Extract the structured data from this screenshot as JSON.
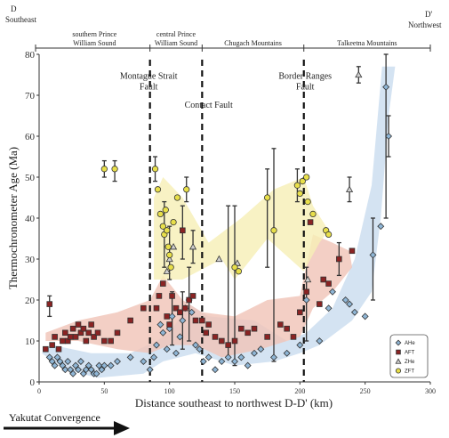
{
  "chart_data": {
    "type": "scatter",
    "xlabel": "Distance southeast to northwest D-D' (km)",
    "ylabel": "Thermochronometer Age (Ma)",
    "xlim": [
      0,
      300
    ],
    "ylim": [
      0,
      80
    ],
    "x_ticks": [
      0,
      50,
      100,
      150,
      200,
      250,
      300
    ],
    "y_ticks": [
      0,
      10,
      20,
      30,
      40,
      50,
      60,
      70,
      80
    ],
    "endpoints": {
      "left": {
        "line1": "D",
        "line2": "Southeast"
      },
      "right": {
        "line1": "D'",
        "line2": "Northwest"
      }
    },
    "regions": [
      {
        "line1": "southern Prince",
        "line2": "William Sound",
        "x_start": 0,
        "x_end": 85
      },
      {
        "line1": "central Prince",
        "line2": "William Sound",
        "x_start": 85,
        "x_end": 125
      },
      {
        "line1": "Chugach Mountains",
        "line2": "",
        "x_start": 125,
        "x_end": 203
      },
      {
        "line1": "Talkeetna Mountains",
        "line2": "",
        "x_start": 203,
        "x_end": 300
      }
    ],
    "faults": [
      {
        "name_line1": "Montague Strait",
        "name_line2": "Fault",
        "x": 85,
        "label_x": 84,
        "label_y": 74
      },
      {
        "name_line1": "Contact Fault",
        "name_line2": "",
        "x": 125,
        "label_x": 130,
        "label_y": 67
      },
      {
        "name_line1": "Border Ranges",
        "name_line2": "Fault",
        "x": 203,
        "label_x": 204,
        "label_y": 74
      }
    ],
    "legend": {
      "position": "bottom-right",
      "entries": [
        "AHe",
        "AFT",
        "ZHe",
        "ZFT"
      ]
    },
    "series_colors": {
      "AHe": "#8fb6d6",
      "AFT": "#8b2323",
      "ZHe": "#cfcfcf",
      "ZFT": "#e8df4a"
    },
    "envelopes": [
      {
        "series": "AHe",
        "color": "#c9dcef",
        "polygon": [
          [
            2,
            7
          ],
          [
            20,
            3
          ],
          [
            45,
            1
          ],
          [
            80,
            2
          ],
          [
            95,
            5
          ],
          [
            120,
            7
          ],
          [
            150,
            4
          ],
          [
            180,
            5
          ],
          [
            200,
            7
          ],
          [
            215,
            9
          ],
          [
            240,
            15
          ],
          [
            255,
            22
          ],
          [
            262,
            40
          ],
          [
            268,
            65
          ],
          [
            273,
            77
          ],
          [
            263,
            77
          ],
          [
            255,
            48
          ],
          [
            242,
            30
          ],
          [
            225,
            18
          ],
          [
            205,
            12
          ],
          [
            190,
            10
          ],
          [
            165,
            15
          ],
          [
            130,
            16
          ],
          [
            115,
            19
          ],
          [
            100,
            12
          ],
          [
            90,
            10
          ],
          [
            70,
            7
          ],
          [
            40,
            7
          ],
          [
            10,
            9
          ]
        ]
      },
      {
        "series": "AFT",
        "color": "#f0c3b6",
        "polygon": [
          [
            5,
            10
          ],
          [
            30,
            10
          ],
          [
            60,
            8
          ],
          [
            85,
            7
          ],
          [
            100,
            9
          ],
          [
            120,
            9
          ],
          [
            140,
            6
          ],
          [
            170,
            8
          ],
          [
            200,
            11
          ],
          [
            210,
            18
          ],
          [
            225,
            22
          ],
          [
            240,
            28
          ],
          [
            238,
            32
          ],
          [
            225,
            34
          ],
          [
            210,
            36
          ],
          [
            200,
            21
          ],
          [
            175,
            20
          ],
          [
            150,
            16
          ],
          [
            125,
            17
          ],
          [
            110,
            20
          ],
          [
            95,
            26
          ],
          [
            85,
            20
          ],
          [
            60,
            17
          ],
          [
            30,
            15
          ],
          [
            5,
            12
          ]
        ]
      },
      {
        "series": "ZFT",
        "color": "#f6efb5",
        "polygon": [
          [
            88,
            25
          ],
          [
            110,
            25
          ],
          [
            140,
            30
          ],
          [
            150,
            25
          ],
          [
            175,
            35
          ],
          [
            203,
            27
          ],
          [
            215,
            34
          ],
          [
            222,
            37
          ],
          [
            210,
            43
          ],
          [
            203,
            50
          ],
          [
            180,
            47
          ],
          [
            155,
            40
          ],
          [
            130,
            34
          ],
          [
            110,
            45
          ],
          [
            95,
            50
          ],
          [
            88,
            45
          ]
        ]
      }
    ],
    "series": [
      {
        "name": "AHe",
        "points": [
          [
            8,
            6
          ],
          [
            10,
            5
          ],
          [
            12,
            4
          ],
          [
            14,
            6
          ],
          [
            16,
            5
          ],
          [
            18,
            4
          ],
          [
            20,
            3
          ],
          [
            22,
            5
          ],
          [
            24,
            3
          ],
          [
            26,
            2
          ],
          [
            28,
            4
          ],
          [
            30,
            3
          ],
          [
            32,
            5
          ],
          [
            34,
            2
          ],
          [
            36,
            3
          ],
          [
            38,
            4
          ],
          [
            40,
            3
          ],
          [
            42,
            2
          ],
          [
            44,
            2
          ],
          [
            46,
            4
          ],
          [
            48,
            3
          ],
          [
            50,
            4
          ],
          [
            55,
            4
          ],
          [
            60,
            5
          ],
          [
            70,
            6
          ],
          [
            80,
            5
          ],
          [
            85,
            3
          ],
          [
            88,
            6
          ],
          [
            90,
            9
          ],
          [
            93,
            14
          ],
          [
            95,
            12
          ],
          [
            98,
            8
          ],
          [
            100,
            13
          ],
          [
            102,
            16
          ],
          [
            105,
            7
          ],
          [
            108,
            11
          ],
          [
            110,
            15
          ],
          [
            112,
            18
          ],
          [
            115,
            20
          ],
          [
            117,
            17
          ],
          [
            120,
            9
          ],
          [
            123,
            8
          ],
          [
            126,
            5
          ],
          [
            130,
            6
          ],
          [
            135,
            3
          ],
          [
            140,
            5
          ],
          [
            145,
            6
          ],
          [
            150,
            5
          ],
          [
            155,
            6
          ],
          [
            160,
            4
          ],
          [
            165,
            7
          ],
          [
            170,
            8
          ],
          [
            180,
            6
          ],
          [
            190,
            7
          ],
          [
            200,
            9
          ],
          [
            205,
            20
          ],
          [
            215,
            10
          ],
          [
            222,
            18
          ],
          [
            225,
            22
          ],
          [
            235,
            20
          ],
          [
            238,
            19
          ],
          [
            242,
            17
          ],
          [
            250,
            16
          ],
          [
            256,
            31
          ],
          [
            262,
            38
          ],
          [
            266,
            72
          ],
          [
            268,
            60
          ]
        ]
      },
      {
        "name": "AFT",
        "points": [
          [
            5,
            8
          ],
          [
            8,
            19
          ],
          [
            10,
            9
          ],
          [
            12,
            11
          ],
          [
            15,
            8
          ],
          [
            18,
            10
          ],
          [
            20,
            12
          ],
          [
            22,
            10
          ],
          [
            24,
            11
          ],
          [
            26,
            13
          ],
          [
            28,
            11
          ],
          [
            30,
            14
          ],
          [
            32,
            12
          ],
          [
            34,
            13
          ],
          [
            36,
            10
          ],
          [
            38,
            12
          ],
          [
            40,
            14
          ],
          [
            42,
            11
          ],
          [
            45,
            12
          ],
          [
            50,
            10
          ],
          [
            55,
            10
          ],
          [
            60,
            12
          ],
          [
            70,
            15
          ],
          [
            80,
            18
          ],
          [
            90,
            18
          ],
          [
            92,
            21
          ],
          [
            95,
            24
          ],
          [
            98,
            16
          ],
          [
            100,
            14
          ],
          [
            102,
            21
          ],
          [
            105,
            18
          ],
          [
            108,
            17
          ],
          [
            110,
            37
          ],
          [
            112,
            18
          ],
          [
            115,
            20
          ],
          [
            118,
            21
          ],
          [
            120,
            15
          ],
          [
            125,
            15
          ],
          [
            128,
            12
          ],
          [
            130,
            14
          ],
          [
            135,
            11
          ],
          [
            140,
            10
          ],
          [
            145,
            9
          ],
          [
            150,
            10
          ],
          [
            155,
            13
          ],
          [
            160,
            12
          ],
          [
            165,
            13
          ],
          [
            175,
            11
          ],
          [
            185,
            14
          ],
          [
            190,
            13
          ],
          [
            195,
            11
          ],
          [
            200,
            17
          ],
          [
            205,
            22
          ],
          [
            208,
            39
          ],
          [
            215,
            19
          ],
          [
            218,
            25
          ],
          [
            222,
            24
          ],
          [
            230,
            30
          ],
          [
            240,
            32
          ]
        ]
      },
      {
        "name": "ZHe",
        "points": [
          [
            98,
            27
          ],
          [
            100,
            30
          ],
          [
            103,
            33
          ],
          [
            118,
            33
          ],
          [
            138,
            30
          ],
          [
            152,
            29
          ],
          [
            206,
            25
          ],
          [
            238,
            47
          ],
          [
            245,
            75
          ]
        ]
      },
      {
        "name": "ZFT",
        "points": [
          [
            50,
            52
          ],
          [
            58,
            52
          ],
          [
            89,
            52
          ],
          [
            91,
            47
          ],
          [
            93,
            41
          ],
          [
            95,
            38
          ],
          [
            96,
            36
          ],
          [
            97,
            42
          ],
          [
            98,
            37
          ],
          [
            99,
            33
          ],
          [
            100,
            31
          ],
          [
            101,
            28
          ],
          [
            103,
            39
          ],
          [
            106,
            45
          ],
          [
            113,
            47
          ],
          [
            150,
            28
          ],
          [
            153,
            27
          ],
          [
            175,
            45
          ],
          [
            180,
            37
          ],
          [
            198,
            48
          ],
          [
            200,
            46
          ],
          [
            202,
            49
          ],
          [
            205,
            50
          ],
          [
            206,
            44
          ],
          [
            210,
            41
          ],
          [
            220,
            37
          ],
          [
            222,
            36
          ]
        ]
      }
    ],
    "error_bars": [
      {
        "series": "AFT",
        "x": 8,
        "low": 16,
        "high": 21
      },
      {
        "series": "ZFT",
        "x": 50,
        "low": 50,
        "high": 54
      },
      {
        "series": "ZFT",
        "x": 58,
        "low": 49,
        "high": 54
      },
      {
        "series": "ZFT",
        "x": 89,
        "low": 49,
        "high": 55
      },
      {
        "series": "ZFT",
        "x": 96,
        "low": 28,
        "high": 44
      },
      {
        "series": "ZFT",
        "x": 100,
        "low": 25,
        "high": 38
      },
      {
        "series": "ZFT",
        "x": 113,
        "low": 44,
        "high": 50
      },
      {
        "series": "AFT",
        "x": 110,
        "low": 30,
        "high": 43
      },
      {
        "series": "ZHe",
        "x": 118,
        "low": 29,
        "high": 37
      },
      {
        "series": "AHe",
        "x": 115,
        "low": 10,
        "high": 28
      },
      {
        "series": "AHe",
        "x": 102,
        "low": 9,
        "high": 22
      },
      {
        "series": "AHe",
        "x": 110,
        "low": 8,
        "high": 22
      },
      {
        "series": "ZFT",
        "x": 145,
        "low": 6,
        "high": 43
      },
      {
        "series": "ZFT",
        "x": 150,
        "low": 4,
        "high": 43
      },
      {
        "series": "ZFT",
        "x": 175,
        "low": 28,
        "high": 52
      },
      {
        "series": "ZFT",
        "x": 180,
        "low": 5,
        "high": 57
      },
      {
        "series": "ZFT",
        "x": 198,
        "low": 44,
        "high": 52
      },
      {
        "series": "AHe",
        "x": 205,
        "low": 10,
        "high": 28
      },
      {
        "series": "AFT",
        "x": 230,
        "low": 26,
        "high": 34
      },
      {
        "series": "ZHe",
        "x": 238,
        "low": 44,
        "high": 50
      },
      {
        "series": "ZHe",
        "x": 245,
        "low": 73,
        "high": 77
      },
      {
        "series": "AHe",
        "x": 256,
        "low": 20,
        "high": 40
      },
      {
        "series": "AHe",
        "x": 266,
        "low": 40,
        "high": 80
      },
      {
        "series": "AHe",
        "x": 268,
        "low": 55,
        "high": 65
      }
    ]
  },
  "footer": {
    "arrow_label": "Yakutat Convergence"
  }
}
